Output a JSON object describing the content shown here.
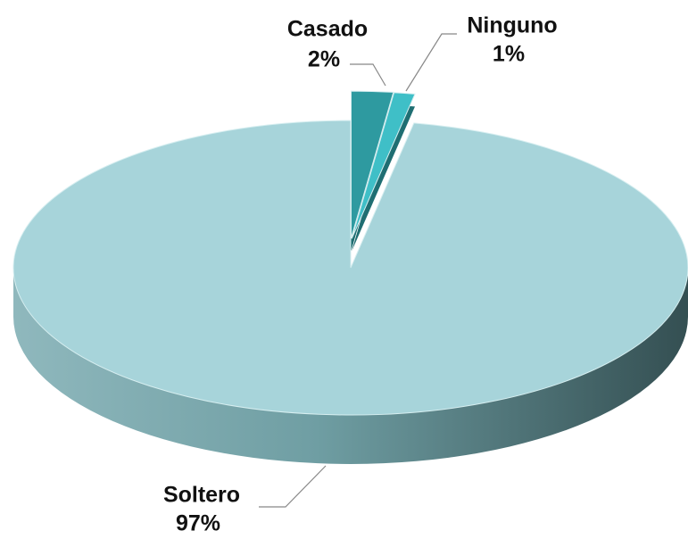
{
  "chart_data": {
    "type": "pie3d",
    "categories": [
      "Casado",
      "Ninguno",
      "Soltero"
    ],
    "values": [
      2,
      1,
      97
    ],
    "value_labels": [
      "2%",
      "1%",
      "97%"
    ],
    "colors": [
      "#2e9aa0",
      "#3fbfc7",
      "#a7d4da"
    ],
    "exploded": [
      true,
      true,
      false
    ]
  }
}
